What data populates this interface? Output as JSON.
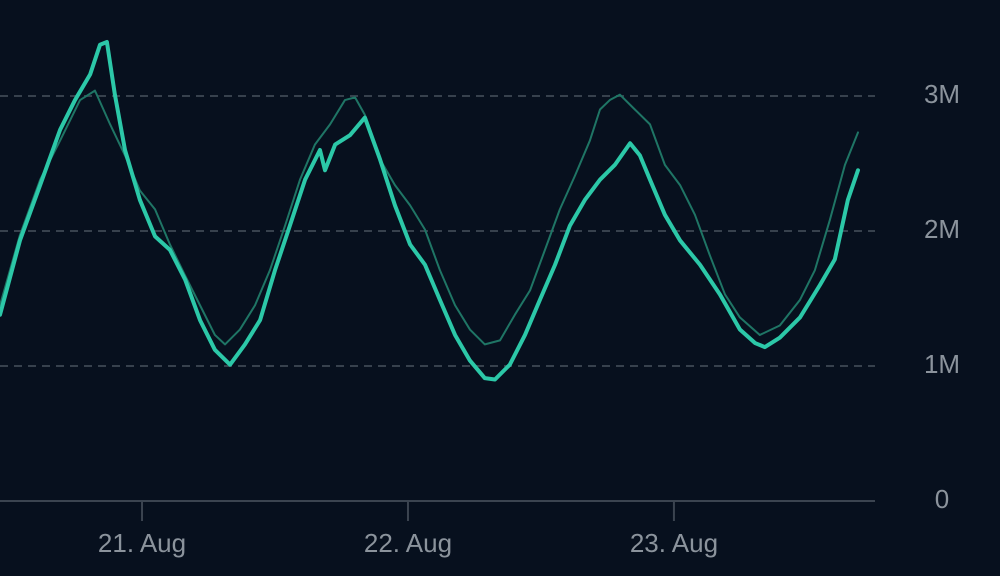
{
  "chart_data": {
    "type": "line",
    "xlim": [
      -0.534,
      2.756
    ],
    "xticks": [
      {
        "value": 0,
        "label": "21. Aug"
      },
      {
        "value": 1,
        "label": "22. Aug"
      },
      {
        "value": 2,
        "label": "23. Aug"
      }
    ],
    "ylim": [
      0,
      3711111
    ],
    "yticks": [
      {
        "value": 0,
        "label": "0"
      },
      {
        "value": 1000000,
        "label": "1M"
      },
      {
        "value": 2000000,
        "label": "2M"
      },
      {
        "value": 3000000,
        "label": "3M"
      }
    ],
    "grid": true,
    "series": [
      {
        "color": "#1f7565",
        "width": 2,
        "x": [
          -0.534,
          -0.459,
          -0.383,
          -0.308,
          -0.233,
          -0.177,
          -0.12,
          -0.064,
          -0.008,
          0.049,
          0.105,
          0.162,
          0.218,
          0.274,
          0.312,
          0.368,
          0.425,
          0.481,
          0.538,
          0.594,
          0.65,
          0.707,
          0.763,
          0.801,
          0.838,
          0.895,
          0.951,
          1.008,
          1.064,
          1.12,
          1.177,
          1.233,
          1.289,
          1.346,
          1.402,
          1.459,
          1.515,
          1.571,
          1.628,
          1.684,
          1.722,
          1.759,
          1.797,
          1.853,
          1.91,
          1.966,
          2.023,
          2.079,
          2.135,
          2.192,
          2.248,
          2.323,
          2.398,
          2.474,
          2.53,
          2.586,
          2.643,
          2.692
        ],
        "values": [
          1450000,
          1970000,
          2380000,
          2670000,
          2970000,
          3040000,
          2790000,
          2560000,
          2300000,
          2160000,
          1900000,
          1670000,
          1450000,
          1230000,
          1160000,
          1270000,
          1450000,
          1710000,
          2040000,
          2380000,
          2640000,
          2790000,
          2970000,
          2990000,
          2860000,
          2530000,
          2340000,
          2190000,
          2010000,
          1710000,
          1450000,
          1270000,
          1160000,
          1190000,
          1380000,
          1560000,
          1860000,
          2160000,
          2410000,
          2670000,
          2900000,
          2970000,
          3010000,
          2900000,
          2790000,
          2490000,
          2340000,
          2120000,
          1820000,
          1530000,
          1360000,
          1230000,
          1300000,
          1490000,
          1710000,
          2080000,
          2490000,
          2730000
        ]
      },
      {
        "color": "#2cc8a8",
        "width": 4,
        "x": [
          -0.534,
          -0.459,
          -0.383,
          -0.308,
          -0.252,
          -0.195,
          -0.158,
          -0.132,
          -0.102,
          -0.064,
          -0.008,
          0.049,
          0.105,
          0.162,
          0.218,
          0.274,
          0.331,
          0.387,
          0.444,
          0.5,
          0.556,
          0.613,
          0.669,
          0.688,
          0.726,
          0.782,
          0.838,
          0.895,
          0.951,
          1.008,
          1.064,
          1.12,
          1.177,
          1.233,
          1.289,
          1.327,
          1.383,
          1.44,
          1.496,
          1.553,
          1.609,
          1.665,
          1.722,
          1.778,
          1.835,
          1.872,
          1.91,
          1.966,
          2.023,
          2.098,
          2.173,
          2.248,
          2.305,
          2.342,
          2.398,
          2.474,
          2.549,
          2.605,
          2.654,
          2.692
        ],
        "values": [
          1380000,
          1930000,
          2340000,
          2750000,
          2970000,
          3160000,
          3380000,
          3400000,
          3010000,
          2600000,
          2230000,
          1960000,
          1860000,
          1640000,
          1340000,
          1120000,
          1010000,
          1160000,
          1340000,
          1710000,
          2040000,
          2380000,
          2600000,
          2450000,
          2640000,
          2710000,
          2840000,
          2530000,
          2190000,
          1900000,
          1750000,
          1490000,
          1230000,
          1040000,
          910000,
          900000,
          1010000,
          1230000,
          1490000,
          1750000,
          2040000,
          2230000,
          2380000,
          2490000,
          2650000,
          2560000,
          2380000,
          2120000,
          1930000,
          1750000,
          1530000,
          1270000,
          1170000,
          1140000,
          1210000,
          1360000,
          1600000,
          1790000,
          2230000,
          2450000
        ]
      }
    ]
  }
}
